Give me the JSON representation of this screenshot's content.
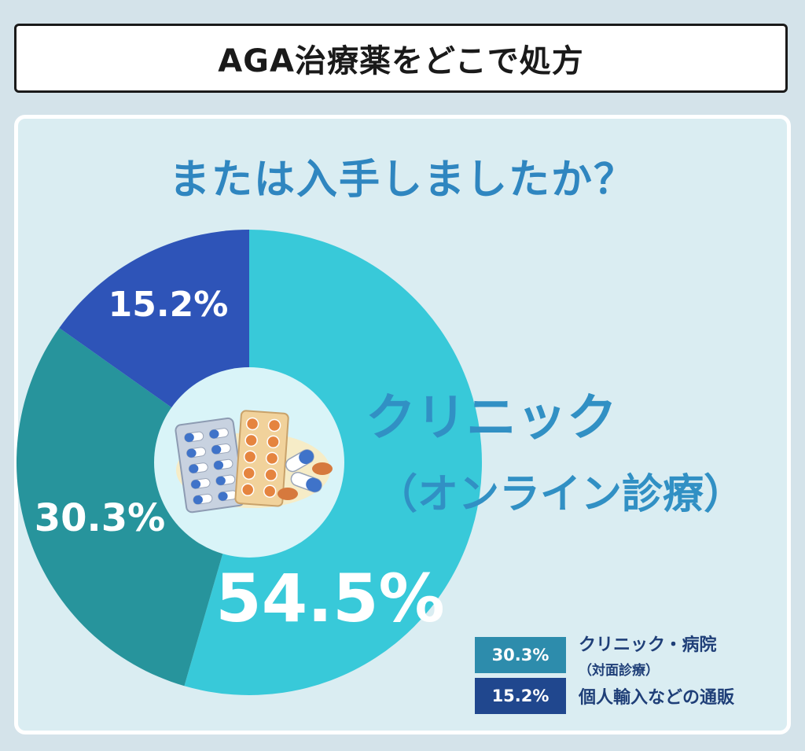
{
  "header": {
    "title": "AGA治療薬をどこで処方"
  },
  "question": "または入手しましたか？",
  "chart_data": {
    "type": "pie",
    "title": "AGA治療薬をどこで処方または入手しましたか？",
    "slices": [
      {
        "label": "クリニック（オンライン診療）",
        "value": 54.5,
        "display": "54.5%",
        "color": "#38c9d9"
      },
      {
        "label": "クリニック・病院（対面診療）",
        "value": 30.3,
        "display": "30.3%",
        "color": "#27949c"
      },
      {
        "label": "個人輸入などの通販",
        "value": 15.2,
        "display": "15.2%",
        "color": "#2e54b8"
      }
    ],
    "callout": {
      "line1": "クリニック",
      "line2": "（オンライン診療）",
      "color": "#3190c4"
    },
    "legend": [
      {
        "value": "30.3%",
        "label": "クリニック・病院",
        "sub": "（対面診療）",
        "color": "#2d8cac"
      },
      {
        "value": "15.2%",
        "label": "個人輸入などの通販",
        "color": "#20478e"
      }
    ]
  }
}
